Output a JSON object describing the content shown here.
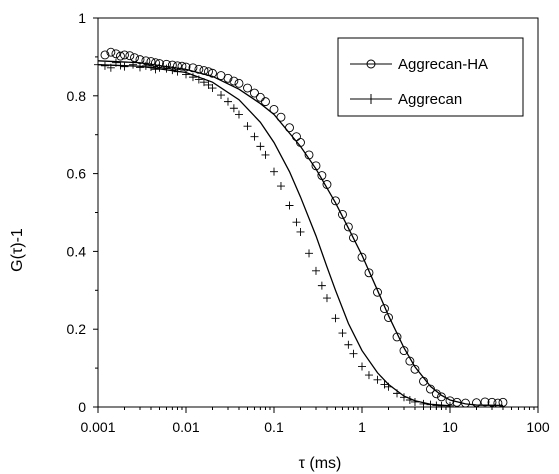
{
  "chart_data": {
    "type": "scatter",
    "title": "",
    "xlabel": "τ (ms)",
    "ylabel": "G(τ)-1",
    "xscale": "log",
    "xlim": [
      0.001,
      100
    ],
    "ylim": [
      0,
      1
    ],
    "x_ticks": [
      "0.001",
      "0.01",
      "0.1",
      "1",
      "10",
      "100"
    ],
    "y_ticks": [
      "0",
      "0.2",
      "0.4",
      "0.6",
      "0.8",
      "1"
    ],
    "grid": false,
    "legend_position": "top-right",
    "series": [
      {
        "name": "Aggrecan-HA",
        "marker": "circle",
        "points": [
          [
            0.0012,
            0.905
          ],
          [
            0.0014,
            0.912
          ],
          [
            0.0016,
            0.908
          ],
          [
            0.0018,
            0.902
          ],
          [
            0.002,
            0.905
          ],
          [
            0.0023,
            0.903
          ],
          [
            0.0026,
            0.898
          ],
          [
            0.003,
            0.893
          ],
          [
            0.0035,
            0.89
          ],
          [
            0.004,
            0.888
          ],
          [
            0.0045,
            0.885
          ],
          [
            0.005,
            0.883
          ],
          [
            0.006,
            0.881
          ],
          [
            0.007,
            0.879
          ],
          [
            0.008,
            0.877
          ],
          [
            0.009,
            0.876
          ],
          [
            0.01,
            0.874
          ],
          [
            0.012,
            0.872
          ],
          [
            0.014,
            0.868
          ],
          [
            0.016,
            0.865
          ],
          [
            0.018,
            0.862
          ],
          [
            0.02,
            0.858
          ],
          [
            0.025,
            0.852
          ],
          [
            0.03,
            0.845
          ],
          [
            0.035,
            0.838
          ],
          [
            0.04,
            0.832
          ],
          [
            0.05,
            0.82
          ],
          [
            0.06,
            0.807
          ],
          [
            0.07,
            0.796
          ],
          [
            0.08,
            0.785
          ],
          [
            0.1,
            0.765
          ],
          [
            0.12,
            0.745
          ],
          [
            0.15,
            0.718
          ],
          [
            0.18,
            0.695
          ],
          [
            0.2,
            0.68
          ],
          [
            0.25,
            0.648
          ],
          [
            0.3,
            0.62
          ],
          [
            0.35,
            0.595
          ],
          [
            0.4,
            0.572
          ],
          [
            0.5,
            0.53
          ],
          [
            0.6,
            0.495
          ],
          [
            0.7,
            0.463
          ],
          [
            0.8,
            0.435
          ],
          [
            1.0,
            0.385
          ],
          [
            1.2,
            0.345
          ],
          [
            1.5,
            0.295
          ],
          [
            1.8,
            0.253
          ],
          [
            2.0,
            0.23
          ],
          [
            2.5,
            0.18
          ],
          [
            3.0,
            0.145
          ],
          [
            3.5,
            0.118
          ],
          [
            4.0,
            0.097
          ],
          [
            5.0,
            0.066
          ],
          [
            6.0,
            0.046
          ],
          [
            7.0,
            0.034
          ],
          [
            8.0,
            0.026
          ],
          [
            10.0,
            0.016
          ],
          [
            12,
            0.012
          ],
          [
            15,
            0.01
          ],
          [
            20,
            0.011
          ],
          [
            25,
            0.013
          ],
          [
            30,
            0.012
          ],
          [
            35,
            0.01
          ],
          [
            40,
            0.012
          ]
        ]
      },
      {
        "name": "Aggrecan",
        "marker": "plus",
        "points": [
          [
            0.001,
            0.88
          ],
          [
            0.0012,
            0.877
          ],
          [
            0.0014,
            0.872
          ],
          [
            0.0016,
            0.885
          ],
          [
            0.0018,
            0.878
          ],
          [
            0.002,
            0.875
          ],
          [
            0.0025,
            0.88
          ],
          [
            0.003,
            0.873
          ],
          [
            0.0035,
            0.877
          ],
          [
            0.004,
            0.874
          ],
          [
            0.0045,
            0.868
          ],
          [
            0.005,
            0.872
          ],
          [
            0.006,
            0.87
          ],
          [
            0.007,
            0.866
          ],
          [
            0.008,
            0.862
          ],
          [
            0.01,
            0.855
          ],
          [
            0.012,
            0.848
          ],
          [
            0.014,
            0.842
          ],
          [
            0.016,
            0.835
          ],
          [
            0.018,
            0.828
          ],
          [
            0.02,
            0.82
          ],
          [
            0.025,
            0.802
          ],
          [
            0.03,
            0.785
          ],
          [
            0.035,
            0.768
          ],
          [
            0.04,
            0.752
          ],
          [
            0.05,
            0.722
          ],
          [
            0.06,
            0.695
          ],
          [
            0.07,
            0.67
          ],
          [
            0.08,
            0.648
          ],
          [
            0.1,
            0.605
          ],
          [
            0.12,
            0.568
          ],
          [
            0.15,
            0.518
          ],
          [
            0.18,
            0.475
          ],
          [
            0.2,
            0.45
          ],
          [
            0.25,
            0.395
          ],
          [
            0.3,
            0.35
          ],
          [
            0.35,
            0.312
          ],
          [
            0.4,
            0.28
          ],
          [
            0.5,
            0.228
          ],
          [
            0.6,
            0.19
          ],
          [
            0.7,
            0.16
          ],
          [
            0.8,
            0.137
          ],
          [
            1.0,
            0.104
          ],
          [
            1.2,
            0.082
          ],
          [
            1.5,
            0.07
          ],
          [
            1.8,
            0.058
          ],
          [
            2.0,
            0.052
          ],
          [
            2.5,
            0.035
          ],
          [
            3.0,
            0.025
          ],
          [
            3.5,
            0.018
          ],
          [
            4.0,
            0.013
          ],
          [
            5.0,
            0.008
          ],
          [
            6.0,
            0.006
          ],
          [
            7.0,
            0.004
          ],
          [
            8.0,
            0.003
          ],
          [
            10.0,
            0.003
          ]
        ]
      }
    ],
    "fits": [
      {
        "series": "Aggrecan-HA",
        "points": [
          [
            0.001,
            0.89
          ],
          [
            0.003,
            0.885
          ],
          [
            0.01,
            0.868
          ],
          [
            0.02,
            0.85
          ],
          [
            0.04,
            0.817
          ],
          [
            0.07,
            0.78
          ],
          [
            0.1,
            0.752
          ],
          [
            0.2,
            0.67
          ],
          [
            0.3,
            0.612
          ],
          [
            0.5,
            0.525
          ],
          [
            0.7,
            0.46
          ],
          [
            1.0,
            0.39
          ],
          [
            1.5,
            0.3
          ],
          [
            2.0,
            0.235
          ],
          [
            3.0,
            0.152
          ],
          [
            4.0,
            0.103
          ],
          [
            6.0,
            0.053
          ],
          [
            8.0,
            0.03
          ],
          [
            10,
            0.018
          ],
          [
            15,
            0.008
          ],
          [
            20,
            0.005
          ],
          [
            40,
            0.004
          ]
        ]
      },
      {
        "series": "Aggrecan",
        "points": [
          [
            0.001,
            0.88
          ],
          [
            0.003,
            0.876
          ],
          [
            0.01,
            0.86
          ],
          [
            0.02,
            0.835
          ],
          [
            0.04,
            0.79
          ],
          [
            0.07,
            0.732
          ],
          [
            0.1,
            0.68
          ],
          [
            0.15,
            0.605
          ],
          [
            0.2,
            0.54
          ],
          [
            0.3,
            0.44
          ],
          [
            0.4,
            0.36
          ],
          [
            0.5,
            0.3
          ],
          [
            0.7,
            0.215
          ],
          [
            1.0,
            0.145
          ],
          [
            1.5,
            0.088
          ],
          [
            2.0,
            0.058
          ],
          [
            3.0,
            0.028
          ],
          [
            4.0,
            0.016
          ],
          [
            6.0,
            0.007
          ],
          [
            10,
            0.003
          ]
        ]
      }
    ]
  }
}
